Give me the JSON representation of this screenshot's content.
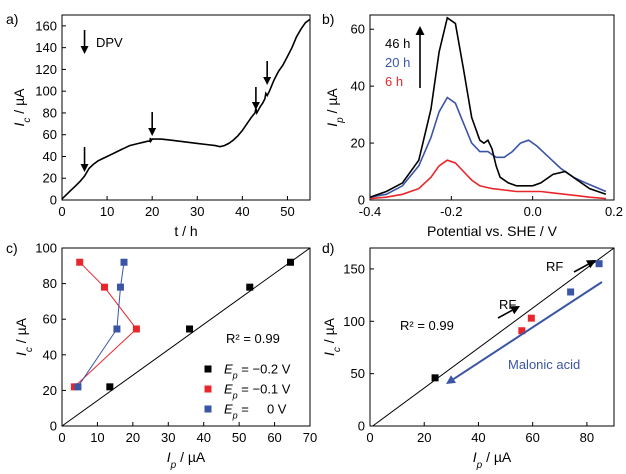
{
  "chart_data": [
    {
      "panel_label": "a)",
      "type": "line",
      "xlabel": "t / h",
      "ylabel_main": "I",
      "ylabel_sub": "c",
      "ylabel_unit": " / µA",
      "xlim": [
        0,
        55
      ],
      "ylim": [
        0,
        170
      ],
      "xticks": [
        0,
        10,
        20,
        30,
        40,
        50
      ],
      "yticks": [
        0,
        20,
        40,
        60,
        80,
        100,
        120,
        140,
        160
      ],
      "annotation": "DPV",
      "series": [
        {
          "x": [
            0,
            1,
            2,
            3,
            4,
            5,
            6,
            7,
            8,
            9,
            10,
            11,
            12,
            13,
            14,
            15,
            16,
            17,
            18,
            19,
            19.5,
            19.6,
            19.7,
            20,
            22,
            24,
            26,
            28,
            30,
            32,
            34,
            35,
            36,
            37,
            38,
            39,
            40,
            41,
            42,
            42.8,
            43,
            43.2,
            44,
            44.5,
            45,
            45.2,
            45.5,
            46,
            47,
            48,
            49,
            50,
            51,
            52,
            53,
            54,
            55
          ],
          "y": [
            1,
            5,
            9,
            13,
            17,
            22,
            29,
            33,
            36,
            38,
            40,
            42,
            44,
            46,
            48,
            50,
            51,
            52,
            53,
            54,
            54,
            57,
            54,
            56,
            56,
            55,
            54,
            53,
            52,
            51,
            50,
            49,
            50,
            52,
            55,
            59,
            64,
            70,
            76,
            80,
            84,
            80,
            86,
            89,
            93,
            98,
            96,
            100,
            110,
            118,
            124,
            132,
            140,
            150,
            157,
            163,
            166
          ]
        }
      ],
      "arrows_x": [
        5,
        20,
        43,
        45.5
      ]
    },
    {
      "panel_label": "b)",
      "type": "line",
      "xlabel": "Potential vs. SHE / V",
      "ylabel_main": "I",
      "ylabel_sub": "p",
      "ylabel_unit": " / µA",
      "xlim": [
        -0.4,
        0.2
      ],
      "ylim": [
        0,
        65
      ],
      "xticks": [
        -0.4,
        -0.2,
        0.0,
        0.2
      ],
      "xtick_labels": [
        "-0.4",
        "-0.2",
        "0.0",
        "0.2"
      ],
      "yticks": [
        0,
        20,
        40,
        60
      ],
      "series": [
        {
          "name": "46 h",
          "color": "#000000",
          "x": [
            -0.4,
            -0.36,
            -0.32,
            -0.28,
            -0.25,
            -0.23,
            -0.21,
            -0.19,
            -0.17,
            -0.15,
            -0.13,
            -0.12,
            -0.11,
            -0.1,
            -0.09,
            -0.08,
            -0.06,
            -0.04,
            -0.02,
            0.0,
            0.02,
            0.05,
            0.08,
            0.11,
            0.14,
            0.18
          ],
          "y": [
            1,
            3,
            6,
            14,
            32,
            52,
            64,
            62,
            46,
            29,
            21,
            20,
            21,
            18,
            12,
            8,
            6,
            5,
            5,
            5,
            6,
            9,
            10,
            7,
            4,
            2
          ]
        },
        {
          "name": "20 h",
          "color": "#3b55a6",
          "x": [
            -0.4,
            -0.36,
            -0.32,
            -0.28,
            -0.25,
            -0.23,
            -0.21,
            -0.19,
            -0.17,
            -0.15,
            -0.13,
            -0.11,
            -0.1,
            -0.09,
            -0.07,
            -0.05,
            -0.03,
            -0.01,
            0.01,
            0.04,
            0.07,
            0.1,
            0.13,
            0.18
          ],
          "y": [
            1,
            2,
            5,
            12,
            22,
            31,
            36,
            34,
            27,
            20,
            17,
            17,
            16,
            15,
            15,
            17,
            20,
            21,
            19,
            15,
            11,
            8,
            6,
            3
          ]
        },
        {
          "name": "6 h",
          "color": "#e8272c",
          "x": [
            -0.4,
            -0.36,
            -0.32,
            -0.28,
            -0.25,
            -0.23,
            -0.21,
            -0.19,
            -0.17,
            -0.15,
            -0.13,
            -0.1,
            -0.07,
            -0.04,
            -0.01,
            0.02,
            0.05,
            0.08,
            0.11,
            0.14,
            0.18
          ],
          "y": [
            0.5,
            1,
            2,
            4,
            8,
            12,
            14,
            13,
            10,
            7,
            5,
            4,
            3.5,
            3,
            3,
            3,
            2.5,
            2,
            1.5,
            1,
            0.5
          ]
        }
      ]
    },
    {
      "panel_label": "c)",
      "type": "scatter",
      "xlabel_main": "I",
      "xlabel_sub": "p",
      "xlabel_unit": " / µA",
      "ylabel_main": "I",
      "ylabel_sub": "c",
      "ylabel_unit": " / µA",
      "xlim": [
        0,
        70
      ],
      "ylim": [
        0,
        100
      ],
      "xticks": [
        0,
        10,
        20,
        30,
        40,
        50,
        60,
        70
      ],
      "yticks": [
        0,
        20,
        40,
        60,
        80,
        100
      ],
      "r2_label": "R² = 0.99",
      "fit_line": {
        "x": [
          0,
          70
        ],
        "y": [
          -1,
          100
        ]
      },
      "series": [
        {
          "name_sym": "E",
          "name_sub": "p",
          "name_val": " = −0.2 V",
          "color": "#000000",
          "connected": false,
          "x": [
            13.5,
            36,
            53,
            64.5
          ],
          "y": [
            22,
            54.5,
            78,
            92
          ]
        },
        {
          "name_sym": "E",
          "name_sub": "p",
          "name_val": " = −0.1 V",
          "color": "#e8272c",
          "connected": true,
          "x": [
            3.5,
            21,
            12,
            5
          ],
          "y": [
            22,
            54.5,
            78,
            92
          ]
        },
        {
          "name_sym": "E",
          "name_sub": "p",
          "name_val": " =     0 V",
          "color": "#3b55a6",
          "connected": true,
          "x": [
            4.5,
            15.5,
            16.5,
            17.5
          ],
          "y": [
            22,
            54.5,
            78,
            92
          ]
        }
      ]
    },
    {
      "panel_label": "d)",
      "type": "scatter",
      "xlabel_main": "I",
      "xlabel_sub": "p",
      "xlabel_unit": " / µA",
      "ylabel_main": "I",
      "ylabel_sub": "c",
      "ylabel_unit": " / µA",
      "xlim": [
        0,
        90
      ],
      "ylim": [
        0,
        170
      ],
      "xticks": [
        0,
        20,
        40,
        60,
        80
      ],
      "yticks": [
        0,
        50,
        100,
        150
      ],
      "r2_label": "R² = 0.99",
      "fit_line": {
        "x": [
          0,
          90
        ],
        "y": [
          -2,
          170
        ]
      },
      "annotations": [
        "RF",
        "RF",
        "Malonic acid"
      ],
      "series": [
        {
          "color": "#000000",
          "x": [
            24
          ],
          "y": [
            46
          ]
        },
        {
          "color": "#e8272c",
          "x": [
            56,
            59.5
          ],
          "y": [
            91,
            103
          ]
        },
        {
          "color": "#3b55a6",
          "x": [
            74,
            84.5
          ],
          "y": [
            128,
            155
          ]
        }
      ]
    }
  ]
}
